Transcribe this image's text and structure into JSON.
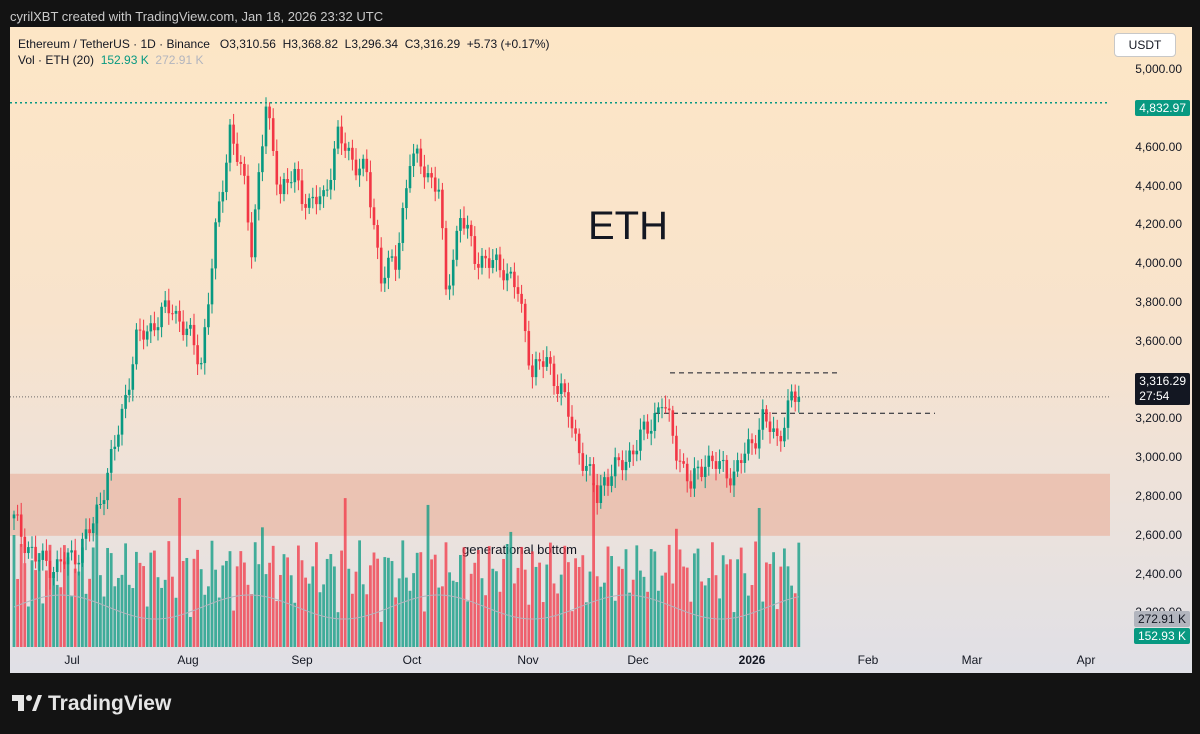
{
  "header": {
    "attribution": "cyrilXBT created with TradingView.com, Jan 18, 2026 23:32 UTC"
  },
  "legend": {
    "symbol": "Ethereum / TetherUS · 1D · Binance",
    "o": "O3,310.56",
    "h": "H3,368.82",
    "l": "L3,296.34",
    "c": "C3,316.29",
    "chg": "+5.73 (+0.17%)",
    "vol_label": "Vol · ETH (20)",
    "vol_value": "152.93 K",
    "vol_ma": "272.91 K"
  },
  "currency_button": "USDT",
  "price_tags": {
    "ath": "4,832.97",
    "last": "3,316.29",
    "countdown": "27:54",
    "vol_ma": "272.91 K",
    "vol": "152.93 K"
  },
  "annotations": {
    "big_label": "ETH",
    "zone_label": "generational bottom"
  },
  "footer": {
    "brand": "TradingView"
  },
  "colors": {
    "up": "#089981",
    "down": "#f23645",
    "zone": "#e9b8a6"
  },
  "chart_data": {
    "type": "candlestick",
    "title": "Ethereum / TetherUS · 1D · Binance",
    "ylim": [
      2050,
      5200
    ],
    "y_ticks": [
      "5,000.00",
      "4,800.00",
      "4,600.00",
      "4,400.00",
      "4,200.00",
      "4,000.00",
      "3,800.00",
      "3,600.00",
      "3,400.00",
      "3,200.00",
      "3,000.00",
      "2,800.00",
      "2,600.00",
      "2,400.00",
      "2,200.00"
    ],
    "y_tick_values": [
      5000,
      4800,
      4600,
      4400,
      4200,
      4000,
      3800,
      3600,
      3400,
      3200,
      3000,
      2800,
      2600,
      2400,
      2200
    ],
    "x_ticks": [
      "Jul",
      "Aug",
      "Sep",
      "Oct",
      "Nov",
      "Dec",
      "2026",
      "Feb",
      "Mar",
      "Apr"
    ],
    "ath_line": 4832.97,
    "zone": [
      2600,
      2920
    ],
    "levels": [
      3440,
      3232
    ],
    "close_anchors": [
      [
        0,
        2680
      ],
      [
        6,
        2480
      ],
      [
        12,
        2440
      ],
      [
        18,
        2520
      ],
      [
        22,
        2660
      ],
      [
        28,
        3050
      ],
      [
        34,
        3600
      ],
      [
        40,
        3720
      ],
      [
        44,
        3780
      ],
      [
        48,
        3650
      ],
      [
        52,
        3500
      ],
      [
        56,
        4150
      ],
      [
        60,
        4700
      ],
      [
        64,
        4400
      ],
      [
        66,
        4100
      ],
      [
        70,
        4800
      ],
      [
        74,
        4380
      ],
      [
        78,
        4450
      ],
      [
        82,
        4300
      ],
      [
        86,
        4350
      ],
      [
        90,
        4650
      ],
      [
        94,
        4550
      ],
      [
        98,
        4450
      ],
      [
        102,
        3950
      ],
      [
        106,
        4000
      ],
      [
        110,
        4550
      ],
      [
        114,
        4500
      ],
      [
        118,
        4380
      ],
      [
        120,
        3850
      ],
      [
        124,
        4250
      ],
      [
        128,
        4050
      ],
      [
        132,
        4000
      ],
      [
        136,
        3990
      ],
      [
        140,
        3850
      ],
      [
        144,
        3450
      ],
      [
        148,
        3500
      ],
      [
        152,
        3350
      ],
      [
        156,
        3100
      ],
      [
        160,
        2900
      ],
      [
        162,
        2800
      ],
      [
        164,
        2900
      ],
      [
        168,
        2950
      ],
      [
        172,
        3050
      ],
      [
        176,
        3150
      ],
      [
        180,
        3300
      ],
      [
        184,
        3050
      ],
      [
        188,
        2850
      ],
      [
        192,
        3000
      ],
      [
        196,
        2950
      ],
      [
        200,
        2920
      ],
      [
        204,
        3050
      ],
      [
        208,
        3200
      ],
      [
        212,
        3100
      ],
      [
        216,
        3300
      ],
      [
        218,
        3316
      ]
    ],
    "volume": {
      "ma": "272.91 K",
      "last": "152.93 K"
    }
  }
}
